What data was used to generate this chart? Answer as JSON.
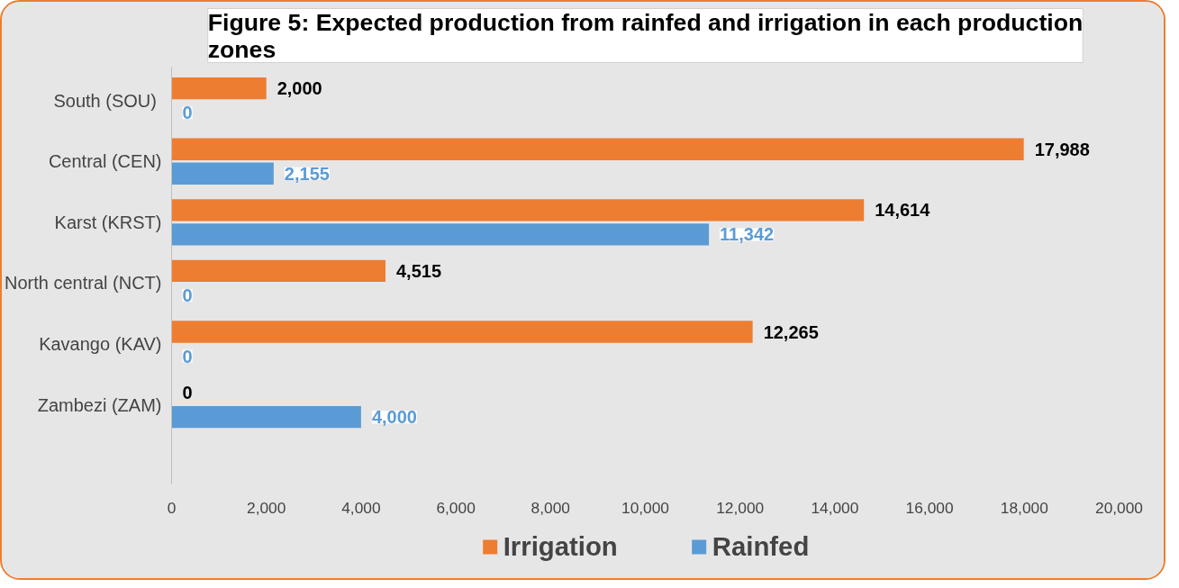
{
  "chart_data": {
    "type": "bar",
    "orientation": "horizontal",
    "title": "Figure 5: Expected production from rainfed and irrigation in each production zones",
    "categories": [
      "South  (SOU)",
      "Central (CEN)",
      "Karst (KRST)",
      "North central (NCT)",
      "Kavango (KAV)",
      "Zambezi (ZAM)"
    ],
    "series": [
      {
        "name": "Irrigation",
        "color": "#ed7d31",
        "values": [
          2000,
          17988,
          14614,
          4515,
          12265,
          0
        ],
        "value_labels": [
          "2,000",
          "17,988",
          "14,614",
          "4,515",
          "12,265",
          "0"
        ]
      },
      {
        "name": "Rainfed",
        "color": "#5b9bd5",
        "values": [
          0,
          2155,
          11342,
          0,
          0,
          4000
        ],
        "value_labels": [
          "0",
          "2,155",
          "11,342",
          "0",
          "0",
          "4,000"
        ]
      }
    ],
    "xlim": [
      0,
      20000
    ],
    "xticks": [
      0,
      {
        "value": 2000,
        "label": "2,000"
      },
      {
        "value": 4000,
        "label": "4,000"
      },
      {
        "value": 6000,
        "label": "6,000"
      },
      {
        "value": 8000,
        "label": "8,000"
      },
      {
        "value": 10000,
        "label": "10,000"
      },
      {
        "value": 12000,
        "label": "12,000"
      },
      {
        "value": 14000,
        "label": "14,000"
      },
      {
        "value": 16000,
        "label": "16,000"
      },
      {
        "value": 18000,
        "label": "18,000"
      },
      {
        "value": 20000,
        "label": "20,000"
      }
    ],
    "grid": false,
    "legend": "bottom"
  }
}
